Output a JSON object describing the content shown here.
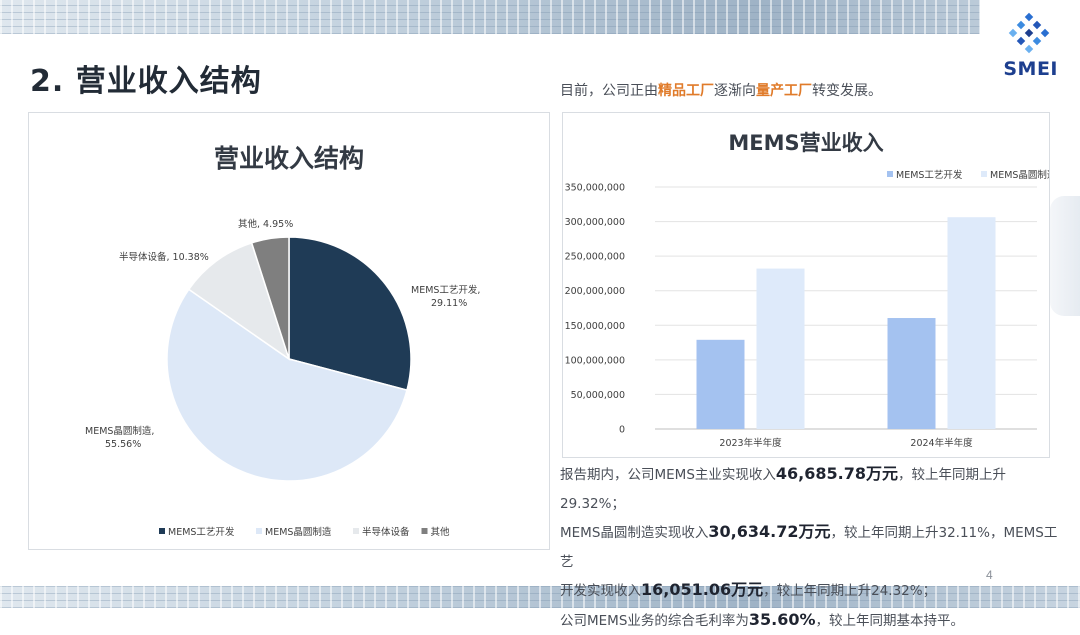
{
  "page": {
    "title": "2. 营业收入结构",
    "logo_text": "SMEI",
    "subtitle": {
      "p1": "目前，公司正由",
      "h1": "精品工厂",
      "p2": "逐渐向",
      "h2": "量产工厂",
      "p3": "转变发展。"
    },
    "page_number": "4",
    "desc": {
      "l1a": "报告期内，公司MEMS主业实现收入",
      "l1b": "46,685.78万元",
      "l1c": "，较上年同期上升29.32%；",
      "l2a": "MEMS晶圆制造实现收入",
      "l2b": "30,634.72万元",
      "l2c": "，较上年同期上升32.11%，MEMS工艺",
      "l3a": "开发实现收入",
      "l3b": "16,051.06万元",
      "l3c": "，较上年同期上升24.32%；",
      "l4a": "公司MEMS业务的综合毛利率为",
      "l4b": "35.60%",
      "l4c": "，较上年同期基本持平。"
    },
    "colors": {
      "accent": "#e07b2a",
      "title": "#222b36",
      "logo": "#1d3f8f"
    }
  },
  "chart_data": [
    {
      "type": "pie",
      "title": "营业收入结构",
      "slices": [
        {
          "name": "MEMS工艺开发",
          "label": "MEMS工艺开发,\n29.11%",
          "value": 29.11,
          "color": "#1f3b56"
        },
        {
          "name": "MEMS晶圆制造",
          "label": "MEMS晶圆制造,\n55.56%",
          "value": 55.56,
          "color": "#dde8f7"
        },
        {
          "name": "半导体设备",
          "label": "半导体设备, 10.38%",
          "value": 10.38,
          "color": "#e6e9ec"
        },
        {
          "name": "其他",
          "label": "其他, 4.95%",
          "value": 4.95,
          "color": "#7f7f7f"
        }
      ],
      "legend_position": "bottom"
    },
    {
      "type": "bar",
      "title": "MEMS营业收入",
      "categories": [
        "2023年半年度",
        "2024年半年度"
      ],
      "series": [
        {
          "name": "MEMS工艺开发",
          "values": [
            129000000,
            160500000
          ],
          "color": "#a4c2f0"
        },
        {
          "name": "MEMS晶圆制造",
          "values": [
            232000000,
            306300000
          ],
          "color": "#deeafa"
        }
      ],
      "ylim": [
        0,
        350000000
      ],
      "yticks": [
        "0",
        "50,000,000",
        "100,000,000",
        "150,000,000",
        "200,000,000",
        "250,000,000",
        "300,000,000",
        "350,000,000"
      ],
      "grid": true,
      "legend_position": "top-right"
    }
  ]
}
